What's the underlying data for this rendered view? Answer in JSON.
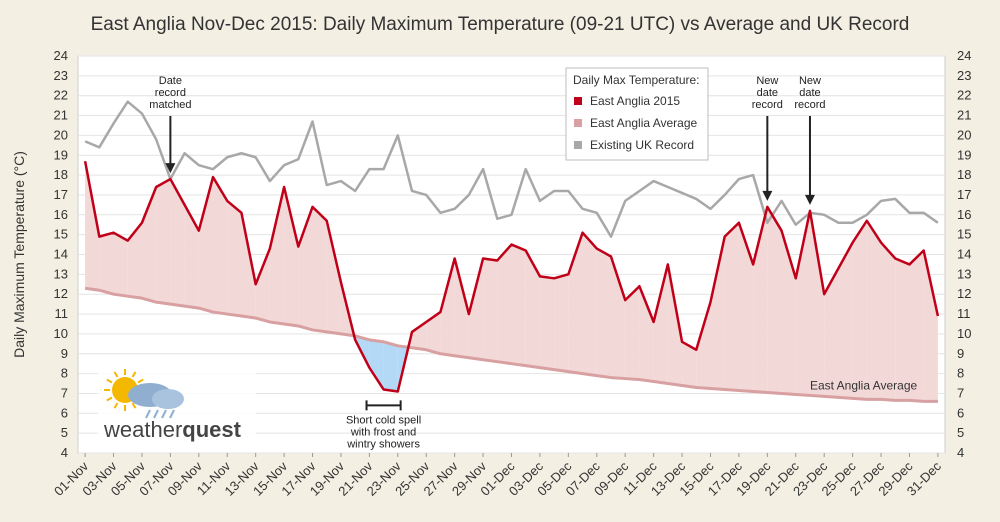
{
  "chart_data": {
    "type": "line",
    "title": "East Anglia Nov-Dec 2015: Daily Maximum Temperature (09-21 UTC) vs Average and UK Record",
    "ylabel": "Daily Maximum Temperature (°C)",
    "ylim": [
      4,
      24
    ],
    "yticks": [
      4,
      5,
      6,
      7,
      8,
      9,
      10,
      11,
      12,
      13,
      14,
      15,
      16,
      17,
      18,
      19,
      20,
      21,
      22,
      23,
      24
    ],
    "grid": true,
    "legend": {
      "title": "Daily Max Temperature:",
      "placement": "top-right"
    },
    "x_tick_labels": [
      "01-Nov",
      "03-Nov",
      "05-Nov",
      "07-Nov",
      "09-Nov",
      "11-Nov",
      "13-Nov",
      "15-Nov",
      "17-Nov",
      "19-Nov",
      "21-Nov",
      "23-Nov",
      "25-Nov",
      "27-Nov",
      "29-Nov",
      "01-Dec",
      "03-Dec",
      "05-Dec",
      "07-Dec",
      "09-Dec",
      "11-Dec",
      "13-Dec",
      "15-Dec",
      "17-Dec",
      "19-Dec",
      "21-Dec",
      "23-Dec",
      "25-Dec",
      "27-Dec",
      "29-Dec",
      "31-Dec"
    ],
    "x": [
      "01-Nov",
      "02-Nov",
      "03-Nov",
      "04-Nov",
      "05-Nov",
      "06-Nov",
      "07-Nov",
      "08-Nov",
      "09-Nov",
      "10-Nov",
      "11-Nov",
      "12-Nov",
      "13-Nov",
      "14-Nov",
      "15-Nov",
      "16-Nov",
      "17-Nov",
      "18-Nov",
      "19-Nov",
      "20-Nov",
      "21-Nov",
      "22-Nov",
      "23-Nov",
      "24-Nov",
      "25-Nov",
      "26-Nov",
      "27-Nov",
      "28-Nov",
      "29-Nov",
      "30-Nov",
      "01-Dec",
      "02-Dec",
      "03-Dec",
      "04-Dec",
      "05-Dec",
      "06-Dec",
      "07-Dec",
      "08-Dec",
      "09-Dec",
      "10-Dec",
      "11-Dec",
      "12-Dec",
      "13-Dec",
      "14-Dec",
      "15-Dec",
      "16-Dec",
      "17-Dec",
      "18-Dec",
      "19-Dec",
      "20-Dec",
      "21-Dec",
      "22-Dec",
      "23-Dec",
      "24-Dec",
      "25-Dec",
      "26-Dec",
      "27-Dec",
      "28-Dec",
      "29-Dec",
      "30-Dec",
      "31-Dec"
    ],
    "series": [
      {
        "name": "East Anglia 2015",
        "color": "#c00018",
        "values": [
          18.7,
          14.9,
          15.1,
          14.7,
          15.6,
          17.4,
          17.8,
          16.5,
          15.2,
          17.9,
          16.7,
          16.1,
          12.5,
          14.3,
          17.4,
          14.4,
          16.4,
          15.7,
          12.6,
          9.7,
          8.3,
          7.2,
          7.1,
          10.1,
          10.6,
          11.1,
          13.8,
          11.0,
          13.8,
          13.7,
          14.5,
          14.2,
          12.9,
          12.8,
          13.0,
          15.1,
          14.3,
          13.9,
          11.7,
          12.4,
          10.6,
          13.5,
          9.6,
          9.2,
          11.6,
          14.9,
          15.6,
          13.5,
          16.4,
          15.2,
          12.8,
          16.2,
          12.0,
          13.3,
          14.6,
          15.7,
          14.6,
          13.8,
          13.5,
          14.2,
          10.9
        ]
      },
      {
        "name": "East Anglia Average",
        "color": "#d8a0a0",
        "values": [
          12.3,
          12.2,
          12.0,
          11.9,
          11.8,
          11.6,
          11.5,
          11.4,
          11.3,
          11.1,
          11.0,
          10.9,
          10.8,
          10.6,
          10.5,
          10.4,
          10.2,
          10.1,
          10.0,
          9.9,
          9.7,
          9.6,
          9.4,
          9.3,
          9.2,
          9.0,
          8.9,
          8.8,
          8.7,
          8.6,
          8.5,
          8.4,
          8.3,
          8.2,
          8.1,
          8.0,
          7.9,
          7.8,
          7.75,
          7.7,
          7.6,
          7.5,
          7.4,
          7.3,
          7.25,
          7.2,
          7.15,
          7.1,
          7.05,
          7.0,
          6.95,
          6.9,
          6.85,
          6.8,
          6.75,
          6.7,
          6.7,
          6.65,
          6.65,
          6.6,
          6.6
        ]
      },
      {
        "name": "Existing UK Record",
        "color": "#a8a8a8",
        "values": [
          19.7,
          19.4,
          20.6,
          21.7,
          21.1,
          19.8,
          17.8,
          19.1,
          18.5,
          18.3,
          18.9,
          19.1,
          18.9,
          17.7,
          18.5,
          18.8,
          20.7,
          17.5,
          17.7,
          17.2,
          18.3,
          18.3,
          20.0,
          17.2,
          17.0,
          16.1,
          16.3,
          17.0,
          18.3,
          15.8,
          16.0,
          18.3,
          16.7,
          17.2,
          17.2,
          16.3,
          16.1,
          14.9,
          16.7,
          17.2,
          17.7,
          17.4,
          17.1,
          16.8,
          16.3,
          17.0,
          17.8,
          18.0,
          15.6,
          16.7,
          15.5,
          16.1,
          16.0,
          15.6,
          15.6,
          16.0,
          16.7,
          16.8,
          16.1,
          16.1,
          15.6
        ]
      }
    ],
    "series_label": "East Anglia Average",
    "annotations": [
      {
        "lines": [
          "Date",
          "record",
          "matched"
        ],
        "x": "07-Nov",
        "arrow_to": 17.8
      },
      {
        "lines": [
          "New",
          "date",
          "record"
        ],
        "x": "19-Dec",
        "arrow_to": 16.4
      },
      {
        "lines": [
          "New",
          "date",
          "record"
        ],
        "x": "22-Dec",
        "arrow_to": 16.2
      },
      {
        "lines": [
          "Short cold spell",
          "with frost and",
          "wintry showers"
        ],
        "x_from": "21-Nov",
        "x_to": "23-Nov"
      }
    ]
  },
  "logo": {
    "text_a": "weather",
    "text_b": "quest"
  }
}
